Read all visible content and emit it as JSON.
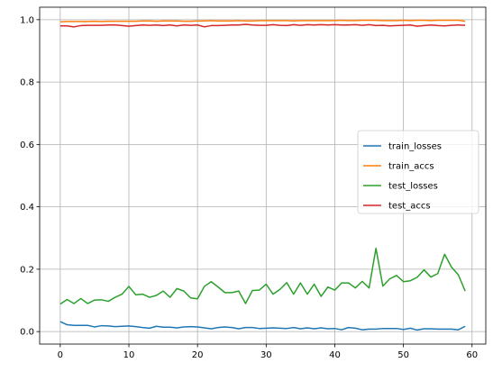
{
  "chart_data": {
    "type": "line",
    "title": "",
    "xlabel": "",
    "ylabel": "",
    "xlim": [
      -3,
      62
    ],
    "ylim": [
      -0.04,
      1.04
    ],
    "xticks": [
      0,
      10,
      20,
      30,
      40,
      50,
      60
    ],
    "yticks": [
      0.0,
      0.2,
      0.4,
      0.6,
      0.8,
      1.0
    ],
    "xtick_labels": [
      "0",
      "10",
      "20",
      "30",
      "40",
      "50",
      "60"
    ],
    "ytick_labels": [
      "0.0",
      "0.2",
      "0.4",
      "0.6",
      "0.8",
      "1.0"
    ],
    "grid": true,
    "legend_position": "center-right",
    "x": [
      0,
      1,
      2,
      3,
      4,
      5,
      6,
      7,
      8,
      9,
      10,
      11,
      12,
      13,
      14,
      15,
      16,
      17,
      18,
      19,
      20,
      21,
      22,
      23,
      24,
      25,
      26,
      27,
      28,
      29,
      30,
      31,
      32,
      33,
      34,
      35,
      36,
      37,
      38,
      39,
      40,
      41,
      42,
      43,
      44,
      45,
      46,
      47,
      48,
      49,
      50,
      51,
      52,
      53,
      54,
      55,
      56,
      57,
      58,
      59
    ],
    "series": [
      {
        "name": "train_losses",
        "color": "#1f77b4",
        "values": [
          0.032,
          0.022,
          0.02,
          0.02,
          0.02,
          0.015,
          0.019,
          0.018,
          0.016,
          0.017,
          0.018,
          0.016,
          0.013,
          0.011,
          0.017,
          0.014,
          0.014,
          0.012,
          0.015,
          0.016,
          0.015,
          0.012,
          0.009,
          0.013,
          0.015,
          0.013,
          0.009,
          0.013,
          0.013,
          0.01,
          0.011,
          0.012,
          0.011,
          0.01,
          0.013,
          0.009,
          0.012,
          0.009,
          0.012,
          0.009,
          0.01,
          0.006,
          0.013,
          0.011,
          0.006,
          0.008,
          0.008,
          0.01,
          0.01,
          0.01,
          0.007,
          0.011,
          0.005,
          0.009,
          0.009,
          0.008,
          0.008,
          0.008,
          0.006,
          0.017
        ]
      },
      {
        "name": "train_accs",
        "color": "#ff7f0e",
        "values": [
          0.993,
          0.994,
          0.994,
          0.994,
          0.994,
          0.995,
          0.994,
          0.995,
          0.995,
          0.995,
          0.995,
          0.995,
          0.996,
          0.996,
          0.995,
          0.996,
          0.996,
          0.996,
          0.995,
          0.995,
          0.996,
          0.996,
          0.997,
          0.996,
          0.996,
          0.996,
          0.997,
          0.996,
          0.996,
          0.997,
          0.997,
          0.997,
          0.997,
          0.997,
          0.996,
          0.997,
          0.997,
          0.997,
          0.997,
          0.997,
          0.997,
          0.998,
          0.997,
          0.997,
          0.998,
          0.998,
          0.998,
          0.997,
          0.997,
          0.997,
          0.998,
          0.997,
          0.998,
          0.998,
          0.997,
          0.998,
          0.998,
          0.998,
          0.998,
          0.995
        ]
      },
      {
        "name": "test_losses",
        "color": "#2ca02c",
        "values": [
          0.088,
          0.103,
          0.09,
          0.106,
          0.09,
          0.101,
          0.102,
          0.097,
          0.11,
          0.12,
          0.145,
          0.118,
          0.12,
          0.11,
          0.116,
          0.13,
          0.11,
          0.138,
          0.13,
          0.108,
          0.105,
          0.145,
          0.16,
          0.143,
          0.125,
          0.125,
          0.13,
          0.09,
          0.132,
          0.133,
          0.152,
          0.12,
          0.135,
          0.157,
          0.12,
          0.156,
          0.12,
          0.152,
          0.113,
          0.143,
          0.133,
          0.156,
          0.156,
          0.14,
          0.161,
          0.14,
          0.267,
          0.146,
          0.169,
          0.18,
          0.16,
          0.163,
          0.174,
          0.198,
          0.175,
          0.186,
          0.248,
          0.207,
          0.182,
          0.13
        ]
      },
      {
        "name": "test_accs",
        "color": "#d62728",
        "values": [
          0.98,
          0.98,
          0.977,
          0.981,
          0.982,
          0.982,
          0.982,
          0.983,
          0.983,
          0.981,
          0.979,
          0.981,
          0.983,
          0.982,
          0.983,
          0.981,
          0.983,
          0.98,
          0.983,
          0.982,
          0.983,
          0.977,
          0.981,
          0.981,
          0.982,
          0.983,
          0.983,
          0.985,
          0.983,
          0.982,
          0.982,
          0.984,
          0.982,
          0.981,
          0.984,
          0.982,
          0.984,
          0.983,
          0.984,
          0.983,
          0.984,
          0.983,
          0.983,
          0.984,
          0.982,
          0.984,
          0.981,
          0.982,
          0.98,
          0.981,
          0.982,
          0.983,
          0.979,
          0.981,
          0.983,
          0.981,
          0.98,
          0.982,
          0.983,
          0.982
        ]
      }
    ]
  }
}
